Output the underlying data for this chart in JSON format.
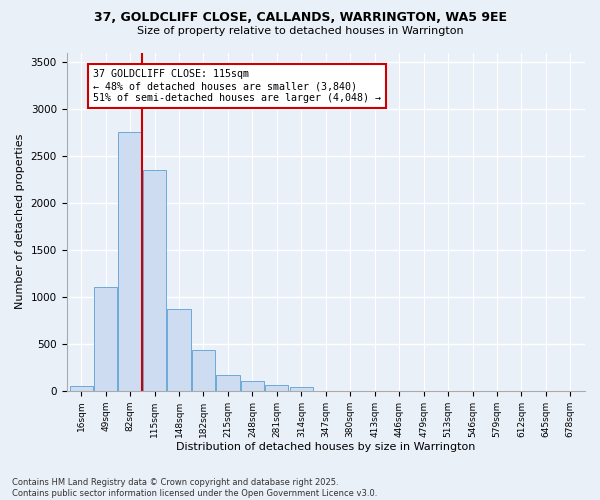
{
  "title_line1": "37, GOLDCLIFF CLOSE, CALLANDS, WARRINGTON, WA5 9EE",
  "title_line2": "Size of property relative to detached houses in Warrington",
  "xlabel": "Distribution of detached houses by size in Warrington",
  "ylabel": "Number of detached properties",
  "categories": [
    "16sqm",
    "49sqm",
    "82sqm",
    "115sqm",
    "148sqm",
    "182sqm",
    "215sqm",
    "248sqm",
    "281sqm",
    "314sqm",
    "347sqm",
    "380sqm",
    "413sqm",
    "446sqm",
    "479sqm",
    "513sqm",
    "546sqm",
    "579sqm",
    "612sqm",
    "645sqm",
    "678sqm"
  ],
  "values": [
    55,
    1100,
    2750,
    2350,
    870,
    430,
    165,
    110,
    65,
    40,
    0,
    0,
    0,
    0,
    0,
    0,
    0,
    0,
    0,
    0,
    0
  ],
  "bar_color": "#cddcf0",
  "bar_edge_color": "#6baad8",
  "vline_x": 2.5,
  "vline_color": "#cc0000",
  "annotation_text_line1": "37 GOLDCLIFF CLOSE: 115sqm",
  "annotation_text_line2": "← 48% of detached houses are smaller (3,840)",
  "annotation_text_line3": "51% of semi-detached houses are larger (4,048) →",
  "box_edge_color": "#cc0000",
  "ylim": [
    0,
    3600
  ],
  "yticks": [
    0,
    500,
    1000,
    1500,
    2000,
    2500,
    3000,
    3500
  ],
  "footer_line1": "Contains HM Land Registry data © Crown copyright and database right 2025.",
  "footer_line2": "Contains public sector information licensed under the Open Government Licence v3.0.",
  "bg_color": "#eaf0f8",
  "plot_bg_color": "#eaf0f8",
  "grid_color": "#c8d4e8"
}
